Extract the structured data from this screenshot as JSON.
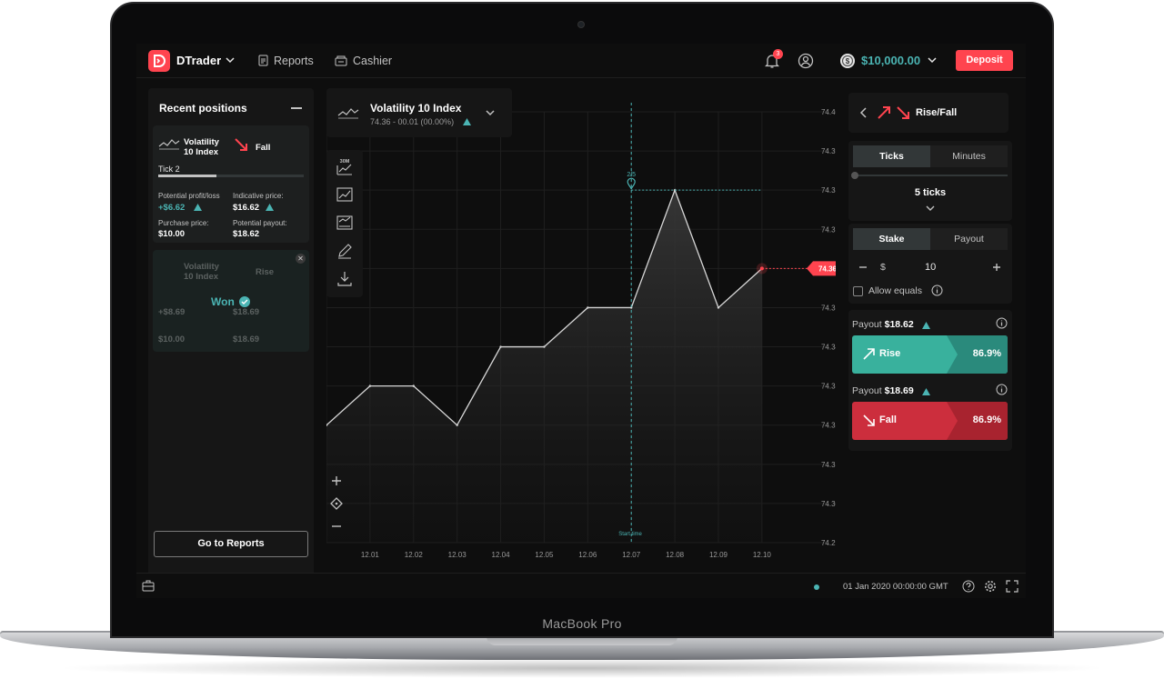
{
  "header": {
    "app_name": "DTrader",
    "reports_label": "Reports",
    "cashier_label": "Cashier",
    "notification_count": "3",
    "balance": "$10,000.00",
    "deposit_label": "Deposit"
  },
  "positions": {
    "title": "Recent positions",
    "card": {
      "symbol": "Volatility 10 Index",
      "contract_type": "Fall",
      "tick_label": "Tick 2",
      "tick_progress": 0.4,
      "profit_label": "Potential profit/loss",
      "profit_value": "+$6.62",
      "indicative_label": "Indicative price:",
      "indicative_value": "$16.62",
      "purchase_label": "Purchase price:",
      "purchase_value": "$10.00",
      "payout_label": "Potential payout:",
      "payout_value": "$18.62"
    },
    "closed_card": {
      "symbol": "Volatility 10 Index",
      "contract_type": "Rise",
      "status": "Won",
      "profit_value": "+$8.69",
      "indicative_value": "$18.69",
      "purchase_value": "$10.00",
      "payout_value": "$18.69"
    },
    "go_reports_label": "Go to Reports"
  },
  "market": {
    "name": "Volatility 10 Index",
    "price_line": "74.36 - 00.01 (00.00%)"
  },
  "toolbar": {
    "interval_label": "30M"
  },
  "chart_data": {
    "type": "area",
    "x": [
      "12.00",
      "12.01",
      "12.02",
      "12.03",
      "12.04",
      "12.05",
      "12.06",
      "12.07",
      "12.08",
      "12.09",
      "12.10"
    ],
    "values": [
      74.32,
      74.33,
      74.33,
      74.32,
      74.34,
      74.34,
      74.35,
      74.35,
      74.38,
      74.35,
      74.36
    ],
    "x_ticks": [
      "12.01",
      "12.02",
      "12.03",
      "12.04",
      "12.05",
      "12.06",
      "12.07",
      "12.08",
      "12.09",
      "12.10"
    ],
    "y_ticks": [
      "74.40",
      "74.39",
      "74.38",
      "74.37",
      "74.36",
      "74.35",
      "74.34",
      "74.33",
      "74.32",
      "74.31",
      "74.30",
      "74.29"
    ],
    "ylim": [
      74.29,
      74.4
    ],
    "current_price": "74.36",
    "barrier_price": 74.38,
    "entry_marker_label": "2/5",
    "start_time_label": "Start time",
    "grid": true
  },
  "trade": {
    "trade_type": "Rise/Fall",
    "duration_tabs": [
      "Ticks",
      "Minutes"
    ],
    "duration_value": "5 ticks",
    "amount_tabs": [
      "Stake",
      "Payout"
    ],
    "currency_symbol": "$",
    "amount": "10",
    "allow_equals": "Allow equals",
    "rise": {
      "payout_label": "Payout",
      "payout_value": "$18.62",
      "label": "Rise",
      "percent": "86.9%"
    },
    "fall": {
      "payout_label": "Payout",
      "payout_value": "$18.69",
      "label": "Fall",
      "percent": "86.9%"
    }
  },
  "footer": {
    "time": "01 Jan 2020 00:00:00 GMT"
  },
  "device_label": "MacBook Pro",
  "colors": {
    "accent_red": "#ff444f",
    "accent_teal": "#4bb4b3",
    "rise_green": "#39b19d",
    "fall_red": "#cc2e3d"
  }
}
